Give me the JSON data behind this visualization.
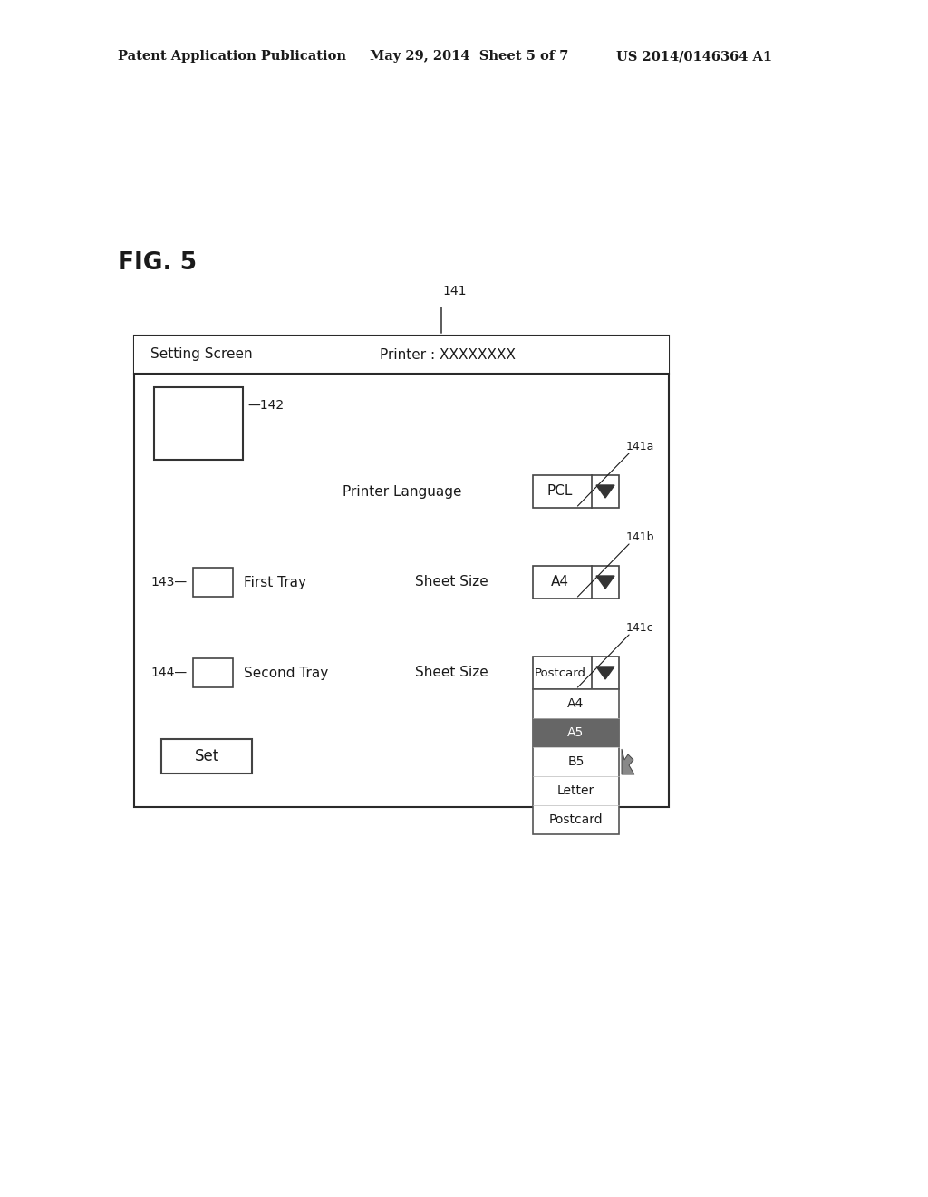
{
  "bg_color": "#ffffff",
  "header_line1": "Patent Application Publication",
  "header_line2": "May 29, 2014  Sheet 5 of 7",
  "header_line3": "US 2014/0146364 A1",
  "fig_label": "FIG. 5",
  "setting_screen_text": "Setting Screen",
  "printer_text": "Printer : XXXXXXXX",
  "label_141": "141",
  "label_141a": "141a",
  "label_141b": "141b",
  "label_141c": "141c",
  "label_142": "—142",
  "label_143": "143",
  "label_144": "144",
  "printer_lang_text": "Printer Language",
  "pcl_text": "PCL",
  "first_tray_text": "First Tray",
  "second_tray_text": "Second Tray",
  "sheet_size_text": "Sheet Size",
  "a4_text": "A4",
  "postcard_text": "Postcard",
  "dropdown_items": [
    "A4",
    "A5",
    "B5",
    "Letter",
    "Postcard"
  ],
  "highlighted_item": "A5",
  "set_button_text": "Set"
}
